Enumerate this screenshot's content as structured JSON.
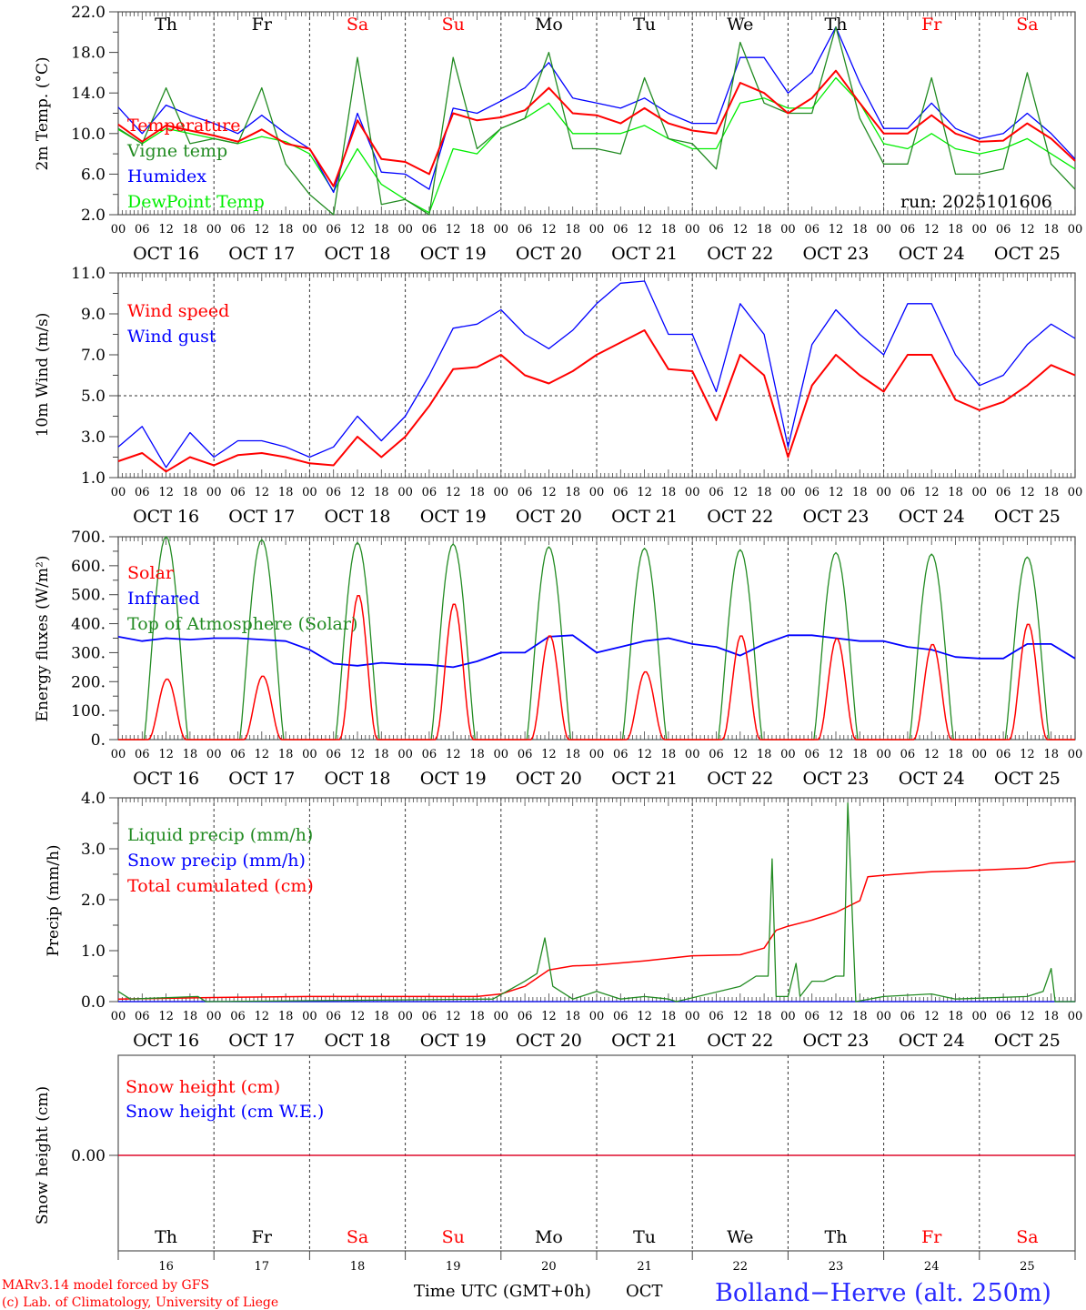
{
  "days": {
    "names": [
      "Th",
      "Fr",
      "Sa",
      "Su",
      "Mo",
      "Tu",
      "We",
      "Th",
      "Fr",
      "Sa"
    ],
    "weekend": [
      false,
      false,
      true,
      true,
      false,
      false,
      false,
      false,
      true,
      true
    ],
    "dates": [
      "OCT 16",
      "OCT 17",
      "OCT 18",
      "OCT 19",
      "OCT 20",
      "OCT 21",
      "OCT 22",
      "OCT 23",
      "OCT 24",
      "OCT 25"
    ],
    "numbers": [
      "16",
      "17",
      "18",
      "19",
      "20",
      "21",
      "22",
      "23",
      "24",
      "25"
    ],
    "hour_labels": [
      "00",
      "06",
      "12",
      "18"
    ]
  },
  "colors": {
    "red": "#ff0000",
    "green": "#228b22",
    "blue": "#0000ff",
    "lime": "#00ee00",
    "weekend": "#ff0000"
  },
  "run_label": "run: 2025101606",
  "footer": {
    "model": "MARv3.14 model forced by GFS",
    "copyright": "(c) Lab. of Climatology, University of Liege",
    "time_label": "Time UTC (GMT+0h)",
    "month": "OCT",
    "station": "Bolland−Herve (alt. 250m)"
  },
  "chart_data": [
    {
      "type": "line",
      "ylabel": "2m Temp. (°C)",
      "ylim": [
        2,
        22
      ],
      "yticks": [
        "2.0",
        "6.0",
        "10.0",
        "14.0",
        "18.0",
        "22.0"
      ],
      "x_step_hours": 6,
      "series": [
        {
          "name": "Temperature",
          "color": "#ff0000",
          "width": 2,
          "values": [
            10.9,
            9.2,
            10.8,
            10.3,
            9.8,
            9.2,
            10.4,
            9.0,
            8.5,
            4.8,
            11.3,
            7.5,
            7.2,
            6.0,
            12.0,
            11.3,
            11.6,
            12.3,
            14.5,
            12.0,
            11.8,
            11.0,
            12.5,
            11.0,
            10.3,
            10.0,
            15.0,
            14.0,
            12.0,
            13.5,
            16.2,
            13.0,
            10.0,
            10.0,
            11.8,
            10.0,
            9.2,
            9.3,
            11.0,
            9.5,
            7.3
          ]
        },
        {
          "name": "Vigne temp",
          "color": "#228b22",
          "width": 1.3,
          "values": [
            10.5,
            9.0,
            14.5,
            9.0,
            9.5,
            9.0,
            14.5,
            7.0,
            4.0,
            2.0,
            17.5,
            3.0,
            3.5,
            2.0,
            17.5,
            8.5,
            10.5,
            11.5,
            18.0,
            8.5,
            8.5,
            8.0,
            15.5,
            9.5,
            9.0,
            6.5,
            19.0,
            13.0,
            12.0,
            12.0,
            20.5,
            11.5,
            7.0,
            7.0,
            15.5,
            6.0,
            6.0,
            6.5,
            16.0,
            7.0,
            4.5
          ]
        },
        {
          "name": "Humidex",
          "color": "#0000ff",
          "width": 1.3,
          "values": [
            12.6,
            10.0,
            12.8,
            11.8,
            11.0,
            10.0,
            11.8,
            10.0,
            8.5,
            4.2,
            12.0,
            6.2,
            6.0,
            4.5,
            12.5,
            12.0,
            13.2,
            14.5,
            17.0,
            13.5,
            13.0,
            12.5,
            13.5,
            12.0,
            11.0,
            11.0,
            17.5,
            17.5,
            14.0,
            16.0,
            20.5,
            15.0,
            10.5,
            10.5,
            13.0,
            10.5,
            9.5,
            10.0,
            12.0,
            10.0,
            7.5
          ]
        },
        {
          "name": "DewPoint Temp",
          "color": "#00ee00",
          "width": 1.3,
          "values": [
            10.4,
            9.0,
            10.5,
            10.0,
            9.5,
            9.0,
            9.7,
            9.2,
            8.0,
            4.3,
            8.5,
            5.0,
            3.5,
            2.2,
            8.5,
            8.0,
            10.5,
            11.5,
            13.0,
            10.0,
            10.0,
            10.0,
            10.8,
            9.5,
            8.5,
            8.5,
            13.0,
            13.5,
            12.5,
            12.5,
            15.5,
            13.0,
            9.0,
            8.5,
            10.0,
            8.5,
            8.0,
            8.5,
            9.5,
            8.0,
            6.5
          ]
        }
      ]
    },
    {
      "type": "line",
      "ylabel": "10m Wind (m/s)",
      "ylim": [
        1,
        11
      ],
      "yticks": [
        "1.0",
        "3.0",
        "5.0",
        "7.0",
        "9.0",
        "11.0"
      ],
      "reference_line": 5.0,
      "x_step_hours": 6,
      "series": [
        {
          "name": "Wind speed",
          "color": "#ff0000",
          "width": 2,
          "values": [
            1.8,
            2.2,
            1.3,
            2.0,
            1.6,
            2.1,
            2.2,
            2.0,
            1.7,
            1.6,
            3.0,
            2.0,
            3.0,
            4.5,
            6.3,
            6.4,
            7.0,
            6.0,
            5.6,
            6.2,
            7.0,
            7.6,
            8.2,
            6.3,
            6.2,
            3.8,
            7.0,
            6.0,
            2.0,
            5.5,
            7.0,
            6.0,
            5.2,
            7.0,
            7.0,
            4.8,
            4.3,
            4.7,
            5.5,
            6.5,
            6.0
          ]
        },
        {
          "name": "Wind gust",
          "color": "#0000ff",
          "width": 1.3,
          "values": [
            2.5,
            3.5,
            1.5,
            3.2,
            2.0,
            2.8,
            2.8,
            2.5,
            2.0,
            2.5,
            4.0,
            2.8,
            4.0,
            6.0,
            8.3,
            8.5,
            9.2,
            8.0,
            7.3,
            8.2,
            9.5,
            10.5,
            10.6,
            8.0,
            8.0,
            5.2,
            9.5,
            8.0,
            2.5,
            7.5,
            9.2,
            8.0,
            7.0,
            9.5,
            9.5,
            7.0,
            5.5,
            6.0,
            7.5,
            8.5,
            7.8
          ]
        }
      ]
    },
    {
      "type": "line",
      "ylabel": "Energy fluxes (W/m²)",
      "ylim": [
        0,
        700
      ],
      "yticks": [
        "0.",
        "100.",
        "200.",
        "300.",
        "400.",
        "500.",
        "600.",
        "700."
      ],
      "series": [
        {
          "name": "Solar",
          "color": "#ff0000",
          "width": 1.5,
          "daily_peak": [
            210,
            220,
            500,
            470,
            360,
            235,
            360,
            350,
            330,
            400
          ]
        },
        {
          "name": "Infrared",
          "color": "#0000ff",
          "width": 1.8,
          "x_step_hours": 6,
          "values": [
            355,
            340,
            350,
            345,
            350,
            350,
            345,
            340,
            310,
            262,
            255,
            265,
            260,
            258,
            250,
            270,
            300,
            300,
            355,
            360,
            300,
            320,
            340,
            350,
            330,
            320,
            290,
            330,
            360,
            360,
            350,
            340,
            340,
            320,
            310,
            285,
            280,
            280,
            330,
            330,
            280
          ]
        },
        {
          "name": "Top of Atmosphere (Solar)",
          "color": "#228b22",
          "width": 1.3,
          "daily_peak": [
            700,
            690,
            680,
            675,
            665,
            660,
            655,
            645,
            640,
            630
          ]
        }
      ]
    },
    {
      "type": "line",
      "ylabel": "Precip (mm/h)",
      "ylim": [
        0,
        4
      ],
      "yticks": [
        "0.0",
        "1.0",
        "2.0",
        "3.0",
        "4.0"
      ],
      "series": [
        {
          "name": "Liquid precip (mm/h)",
          "color": "#228b22",
          "width": 1.3,
          "points": [
            [
              0,
              0.2
            ],
            [
              3,
              0.05
            ],
            [
              20,
              0.1
            ],
            [
              22,
              0
            ],
            [
              94,
              0.05
            ],
            [
              102,
              0.4
            ],
            [
              105,
              0.55
            ],
            [
              107,
              1.25
            ],
            [
              109,
              0.3
            ],
            [
              114,
              0.05
            ],
            [
              120,
              0.2
            ],
            [
              126,
              0.05
            ],
            [
              132,
              0.1
            ],
            [
              138,
              0.05
            ],
            [
              140,
              0
            ],
            [
              156,
              0.3
            ],
            [
              160,
              0.5
            ],
            [
              163,
              0.5
            ],
            [
              164,
              2.8
            ],
            [
              165,
              0.1
            ],
            [
              168,
              0.1
            ],
            [
              170,
              0.75
            ],
            [
              171,
              0.1
            ],
            [
              174,
              0.4
            ],
            [
              177,
              0.4
            ],
            [
              180,
              0.5
            ],
            [
              182,
              0.5
            ],
            [
              183,
              3.9
            ],
            [
              185,
              0
            ],
            [
              192,
              0.1
            ],
            [
              204,
              0.15
            ],
            [
              210,
              0.05
            ],
            [
              228,
              0.1
            ],
            [
              232,
              0.2
            ],
            [
              234,
              0.65
            ],
            [
              235,
              0
            ],
            [
              240,
              0
            ]
          ]
        },
        {
          "name": "Snow precip (mm/h)",
          "color": "#0000ff",
          "width": 1.3,
          "points": [
            [
              0,
              0
            ],
            [
              240,
              0
            ]
          ]
        },
        {
          "name": "Total cumulated (cm)",
          "color": "#ff0000",
          "width": 1.5,
          "points": [
            [
              0,
              0.05
            ],
            [
              24,
              0.08
            ],
            [
              48,
              0.1
            ],
            [
              72,
              0.1
            ],
            [
              90,
              0.1
            ],
            [
              96,
              0.15
            ],
            [
              102,
              0.3
            ],
            [
              108,
              0.62
            ],
            [
              114,
              0.7
            ],
            [
              120,
              0.72
            ],
            [
              132,
              0.8
            ],
            [
              144,
              0.9
            ],
            [
              156,
              0.92
            ],
            [
              162,
              1.05
            ],
            [
              165,
              1.4
            ],
            [
              168,
              1.48
            ],
            [
              174,
              1.6
            ],
            [
              180,
              1.75
            ],
            [
              186,
              1.98
            ],
            [
              188,
              2.45
            ],
            [
              192,
              2.48
            ],
            [
              204,
              2.55
            ],
            [
              216,
              2.58
            ],
            [
              228,
              2.62
            ],
            [
              234,
              2.72
            ],
            [
              240,
              2.75
            ]
          ]
        }
      ]
    },
    {
      "type": "line",
      "ylabel": "Snow height (cm)",
      "yticks": [
        "0.00"
      ],
      "series": [
        {
          "name": "Snow height (cm)",
          "color": "#ff0000",
          "width": 1.3,
          "points": [
            [
              0,
              0
            ],
            [
              240,
              0
            ]
          ]
        },
        {
          "name": "Snow height (cm W.E.)",
          "color": "#0000ff",
          "width": 1.3,
          "points": [
            [
              0,
              0
            ],
            [
              240,
              0
            ]
          ]
        }
      ]
    }
  ]
}
